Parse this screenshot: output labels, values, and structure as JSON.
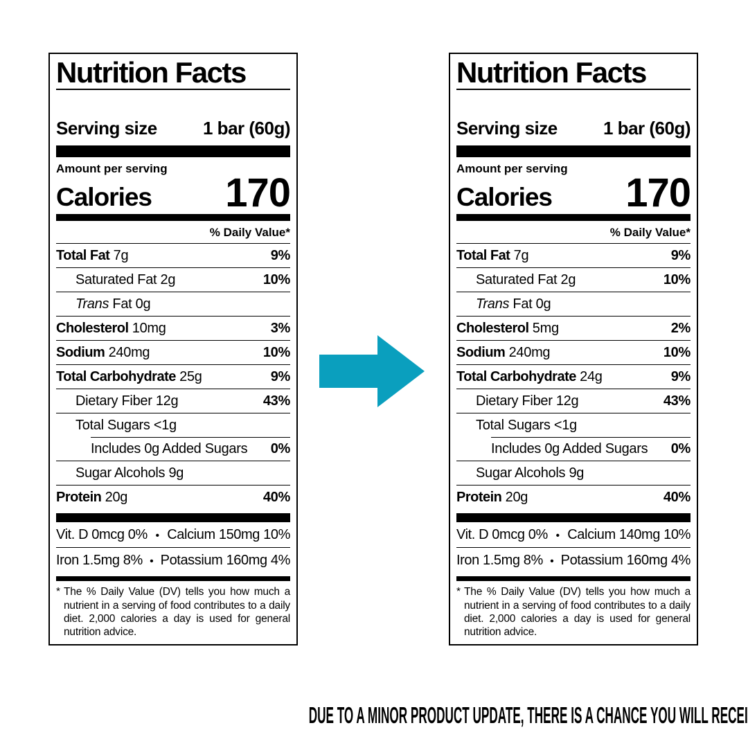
{
  "caption": "DUE TO A MINOR PRODUCT UPDATE, THERE IS A CHANCE YOU WILL RECEIVE EITHER OF THESE TWO PRODUCTS.",
  "arrow": {
    "color": "#0a9fbe",
    "direction": "right"
  },
  "labels": [
    {
      "title": "Nutrition Facts",
      "serving_size_label": "Serving size",
      "serving_size_value": "1 bar (60g)",
      "amount_per_serving": "Amount per serving",
      "calories_label": "Calories",
      "calories_value": "170",
      "daily_value_header": "% Daily Value*",
      "rows": [
        {
          "name": "Total Fat",
          "amount": "7g",
          "dv": "9%",
          "level": 0,
          "bold": true
        },
        {
          "name": "Saturated Fat",
          "amount": "2g",
          "dv": "10%",
          "level": 1
        },
        {
          "italic_prefix": "Trans",
          "name": "Fat",
          "amount": "0g",
          "dv": "",
          "level": 1
        },
        {
          "name": "Cholesterol",
          "amount": "10mg",
          "dv": "3%",
          "level": 0,
          "bold": true
        },
        {
          "name": "Sodium",
          "amount": "240mg",
          "dv": "10%",
          "level": 0,
          "bold": true
        },
        {
          "name": "Total Carbohydrate",
          "amount": "25g",
          "dv": "9%",
          "level": 0,
          "bold": true
        },
        {
          "name": "Dietary Fiber",
          "amount": "12g",
          "dv": "43%",
          "level": 1
        },
        {
          "name": "Total Sugars",
          "amount": "<1g",
          "dv": "",
          "level": 1
        },
        {
          "name": "Includes 0g Added Sugars",
          "amount": "",
          "dv": "0%",
          "level": 2,
          "rule_indent": true
        },
        {
          "name": "Sugar Alcohols",
          "amount": "9g",
          "dv": "",
          "level": 1
        },
        {
          "name": "Protein",
          "amount": "20g",
          "dv": "40%",
          "level": 0,
          "bold": true
        }
      ],
      "micros": [
        {
          "left": "Vit. D 0mcg 0%",
          "bullet": "•",
          "right": "Calcium 150mg 10%"
        },
        {
          "left": "Iron 1.5mg 8%",
          "bullet": "•",
          "right": "Potassium 160mg 4%"
        }
      ],
      "footnote_marker": "*",
      "footnote": "The % Daily Value (DV) tells you how much a nutrient in a serving of food contributes to a daily diet. 2,000 calories a day is used for general nutrition advice."
    },
    {
      "title": "Nutrition Facts",
      "serving_size_label": "Serving size",
      "serving_size_value": "1 bar (60g)",
      "amount_per_serving": "Amount per serving",
      "calories_label": "Calories",
      "calories_value": "170",
      "daily_value_header": "% Daily Value*",
      "rows": [
        {
          "name": "Total Fat",
          "amount": "7g",
          "dv": "9%",
          "level": 0,
          "bold": true
        },
        {
          "name": "Saturated Fat",
          "amount": "2g",
          "dv": "10%",
          "level": 1
        },
        {
          "italic_prefix": "Trans",
          "name": "Fat",
          "amount": "0g",
          "dv": "",
          "level": 1
        },
        {
          "name": "Cholesterol",
          "amount": "5mg",
          "dv": "2%",
          "level": 0,
          "bold": true
        },
        {
          "name": "Sodium",
          "amount": "240mg",
          "dv": "10%",
          "level": 0,
          "bold": true
        },
        {
          "name": "Total Carbohydrate",
          "amount": "24g",
          "dv": "9%",
          "level": 0,
          "bold": true
        },
        {
          "name": "Dietary Fiber",
          "amount": "12g",
          "dv": "43%",
          "level": 1
        },
        {
          "name": "Total Sugars",
          "amount": "<1g",
          "dv": "",
          "level": 1
        },
        {
          "name": "Includes 0g Added Sugars",
          "amount": "",
          "dv": "0%",
          "level": 2,
          "rule_indent": true
        },
        {
          "name": "Sugar Alcohols",
          "amount": "9g",
          "dv": "",
          "level": 1
        },
        {
          "name": "Protein",
          "amount": "20g",
          "dv": "40%",
          "level": 0,
          "bold": true
        }
      ],
      "micros": [
        {
          "left": "Vit. D 0mcg 0%",
          "bullet": "•",
          "right": "Calcium 140mg 10%"
        },
        {
          "left": "Iron 1.5mg 8%",
          "bullet": "•",
          "right": "Potassium 160mg 4%"
        }
      ],
      "footnote_marker": "*",
      "footnote": "The % Daily Value (DV) tells you how much a nutrient in a serving of food contributes to a daily diet. 2,000 calories a day is used for general nutrition advice."
    }
  ]
}
